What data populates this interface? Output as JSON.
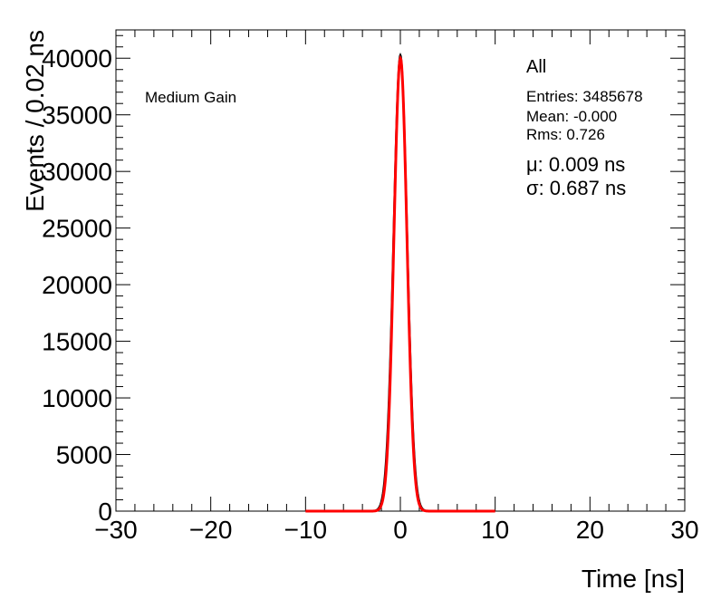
{
  "chart_data": {
    "type": "line",
    "xlabel": "Time [ns]",
    "ylabel": "Events / 0.02 ns",
    "xlim": [
      -30,
      30
    ],
    "ylim": [
      0,
      42500
    ],
    "x_ticks": [
      -30,
      -20,
      -10,
      0,
      10,
      20,
      30
    ],
    "x_tick_labels": [
      "−30",
      "−20",
      "−10",
      "0",
      "10",
      "20",
      "30"
    ],
    "y_ticks": [
      0,
      5000,
      10000,
      15000,
      20000,
      25000,
      30000,
      35000,
      40000
    ],
    "y_tick_labels": [
      "0",
      "5000",
      "10000",
      "15000",
      "20000",
      "25000",
      "30000",
      "35000",
      "40000"
    ],
    "annotation": "Medium Gain",
    "stats_box": {
      "title": "All",
      "entries": "Entries: 3485678",
      "mean": "Mean: -0.000",
      "rms": "Rms: 0.726",
      "fit_mu": "μ: 0.009 ns",
      "fit_sigma": "σ: 0.687 ns"
    },
    "series": [
      {
        "kind": "histogram",
        "color": "#000000",
        "peak": 40300,
        "mu": 0.0,
        "sigma": 0.726,
        "bin_width": 0.02,
        "x_range": [
          -3,
          3
        ]
      },
      {
        "kind": "gaussian-fit",
        "color": "#ff0000",
        "peak": 40000,
        "mu": 0.009,
        "sigma": 0.687,
        "x_range": [
          -10,
          10
        ]
      }
    ]
  }
}
